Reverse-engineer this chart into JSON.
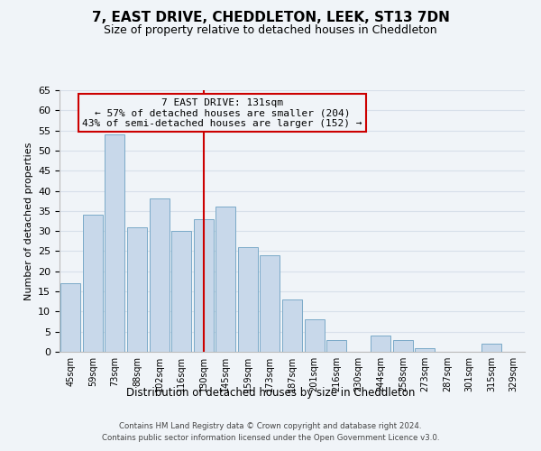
{
  "title": "7, EAST DRIVE, CHEDDLETON, LEEK, ST13 7DN",
  "subtitle": "Size of property relative to detached houses in Cheddleton",
  "xlabel": "Distribution of detached houses by size in Cheddleton",
  "ylabel": "Number of detached properties",
  "bin_labels": [
    "45sqm",
    "59sqm",
    "73sqm",
    "88sqm",
    "102sqm",
    "116sqm",
    "130sqm",
    "145sqm",
    "159sqm",
    "173sqm",
    "187sqm",
    "201sqm",
    "216sqm",
    "230sqm",
    "244sqm",
    "258sqm",
    "273sqm",
    "287sqm",
    "301sqm",
    "315sqm",
    "329sqm"
  ],
  "bar_values": [
    17,
    34,
    54,
    31,
    38,
    30,
    33,
    36,
    26,
    24,
    13,
    8,
    3,
    0,
    4,
    3,
    1,
    0,
    0,
    2,
    0
  ],
  "bar_color": "#c8d8ea",
  "bar_edge_color": "#7aaac8",
  "vline_x_index": 6,
  "vline_color": "#cc0000",
  "annotation_line1": "7 EAST DRIVE: 131sqm",
  "annotation_line2": "← 57% of detached houses are smaller (204)",
  "annotation_line3": "43% of semi-detached houses are larger (152) →",
  "annotation_box_edge": "#cc0000",
  "ylim": [
    0,
    65
  ],
  "yticks": [
    0,
    5,
    10,
    15,
    20,
    25,
    30,
    35,
    40,
    45,
    50,
    55,
    60,
    65
  ],
  "footer_line1": "Contains HM Land Registry data © Crown copyright and database right 2024.",
  "footer_line2": "Contains public sector information licensed under the Open Government Licence v3.0.",
  "background_color": "#f0f4f8",
  "grid_color": "#d8e0ea",
  "title_fontsize": 11,
  "subtitle_fontsize": 9
}
